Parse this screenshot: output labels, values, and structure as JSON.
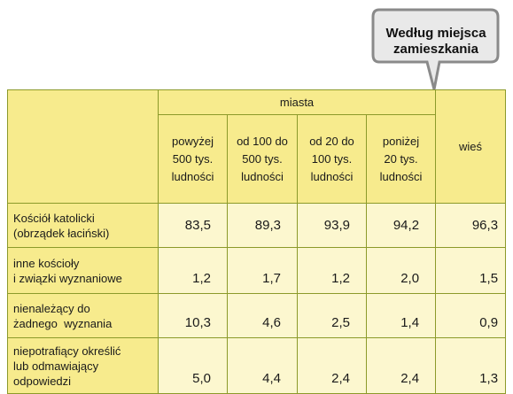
{
  "callout": {
    "line1": "Według miejsca",
    "line2": "zamieszkania"
  },
  "table": {
    "group_header": "miasta",
    "columns": [
      [
        "powyżej",
        "500 tys.",
        "ludności"
      ],
      [
        "od 100 do",
        "500 tys.",
        "ludności"
      ],
      [
        "od 20 do",
        "100 tys.",
        "ludności"
      ],
      [
        "poniżej",
        "20 tys.",
        "ludności"
      ]
    ],
    "village_header": "wieś",
    "rows": [
      {
        "label": [
          "Kościół katolicki",
          "(obrządek łaciński)"
        ],
        "values": [
          "83,5",
          "89,3",
          "93,9",
          "94,2",
          "96,3"
        ]
      },
      {
        "label": [
          "inne kościoły",
          "i związki wyznaniowe"
        ],
        "values": [
          "1,2",
          "1,7",
          "1,2",
          "2,0",
          "1,5"
        ]
      },
      {
        "label": [
          "nienależący do",
          "żadnego  wyznania"
        ],
        "values": [
          "10,3",
          "4,6",
          "2,5",
          "1,4",
          "0,9"
        ]
      },
      {
        "label": [
          "niepotrafiący określić",
          "lub odmawiający",
          "odpowiedzi"
        ],
        "values": [
          "5,0",
          "4,4",
          "2,4",
          "2,4",
          "1,3"
        ]
      }
    ]
  }
}
